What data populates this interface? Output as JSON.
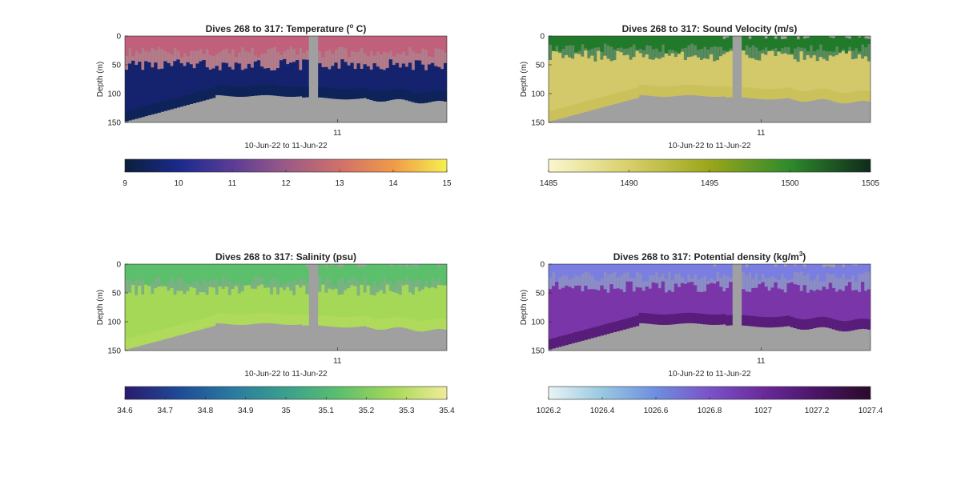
{
  "figure": {
    "background": "#ffffff"
  },
  "chart_data": [
    {
      "type": "heatmap",
      "id": "temperature",
      "title": "Dives 268 to 317: Temperature (",
      "title_sup": "o",
      "title_end": " C)",
      "ylabel": "Depth (m)",
      "xlabel": "10-Jun-22 to 11-Jun-22",
      "x_ticks": [
        "11"
      ],
      "y_ticks": [
        "0",
        "50",
        "100",
        "150"
      ],
      "ylim": [
        0,
        150
      ],
      "y_reversed": true,
      "colorbar": {
        "ticks": [
          "9",
          "10",
          "11",
          "12",
          "13",
          "14",
          "15"
        ],
        "range": [
          9,
          15
        ],
        "colors": [
          "#0b1f3a",
          "#1a2a8c",
          "#5a3c96",
          "#9a5a86",
          "#d0706a",
          "#f09a48",
          "#f5f050"
        ]
      },
      "fill_colors": {
        "surface": "#c0607a",
        "deep": "#15236e",
        "bottom": "#0c2450"
      },
      "layer": {
        "surface_depth": 28,
        "deep_top": 50
      }
    },
    {
      "type": "heatmap",
      "id": "sound-velocity",
      "title": "Dives 268 to 317: Sound Velocity (m/s)",
      "ylabel": "Depth (m)",
      "xlabel": "10-Jun-22 to 11-Jun-22",
      "x_ticks": [
        "11"
      ],
      "y_ticks": [
        "0",
        "50",
        "100",
        "150"
      ],
      "ylim": [
        0,
        150
      ],
      "y_reversed": true,
      "colorbar": {
        "ticks": [
          "1485",
          "1490",
          "1495",
          "1500",
          "1505"
        ],
        "range": [
          1485,
          1505
        ],
        "colors": [
          "#fbf7cf",
          "#d8cf6a",
          "#9aa61a",
          "#2e8a2c",
          "#0f2a1a"
        ]
      },
      "fill_colors": {
        "surface": "#217a2a",
        "deep": "#d3c86a",
        "bottom": "#c8bd55"
      },
      "layer": {
        "surface_depth": 22,
        "deep_top": 35
      }
    },
    {
      "type": "heatmap",
      "id": "salinity",
      "title": "Dives 268 to 317: Salinity (psu)",
      "ylabel": "Depth (m)",
      "xlabel": "10-Jun-22 to 11-Jun-22",
      "x_ticks": [
        "11"
      ],
      "y_ticks": [
        "0",
        "50",
        "100",
        "150"
      ],
      "ylim": [
        0,
        150
      ],
      "y_reversed": true,
      "colorbar": {
        "ticks": [
          "34.6",
          "34.7",
          "34.8",
          "34.9",
          "35",
          "35.1",
          "35.2",
          "35.3",
          "35.4"
        ],
        "range": [
          34.6,
          35.4
        ],
        "colors": [
          "#2a1a6e",
          "#1f4a96",
          "#2a7aa0",
          "#3aa08e",
          "#5cbf6c",
          "#a6d858",
          "#f0ec9a"
        ]
      },
      "fill_colors": {
        "surface": "#5cbf6c",
        "deep": "#a6d858",
        "bottom": "#b4dc5c"
      },
      "layer": {
        "surface_depth": 30,
        "deep_top": 45
      }
    },
    {
      "type": "heatmap",
      "id": "potential-density",
      "title": "Dives 268 to 317: Potential density (kg/m",
      "title_sup": "3",
      "title_end": ")",
      "ylabel": "Depth (m)",
      "xlabel": "10-Jun-22 to 11-Jun-22",
      "x_ticks": [
        "11"
      ],
      "y_ticks": [
        "0",
        "50",
        "100",
        "150"
      ],
      "ylim": [
        0,
        150
      ],
      "y_reversed": true,
      "colorbar": {
        "ticks": [
          "1026.2",
          "1026.4",
          "1026.6",
          "1026.8",
          "1027",
          "1027.2",
          "1027.4"
        ],
        "range": [
          1026.2,
          1027.4
        ],
        "colors": [
          "#e8f4f4",
          "#98c8e0",
          "#6e8ee0",
          "#7a52c8",
          "#6a2a9c",
          "#4a1466",
          "#2a0a2a"
        ]
      },
      "fill_colors": {
        "surface": "#7a7ee0",
        "deep": "#7a36a8",
        "bottom": "#4a1266"
      },
      "layer": {
        "surface_depth": 22,
        "deep_top": 40
      }
    }
  ],
  "mask_color": "#a0a0a0"
}
